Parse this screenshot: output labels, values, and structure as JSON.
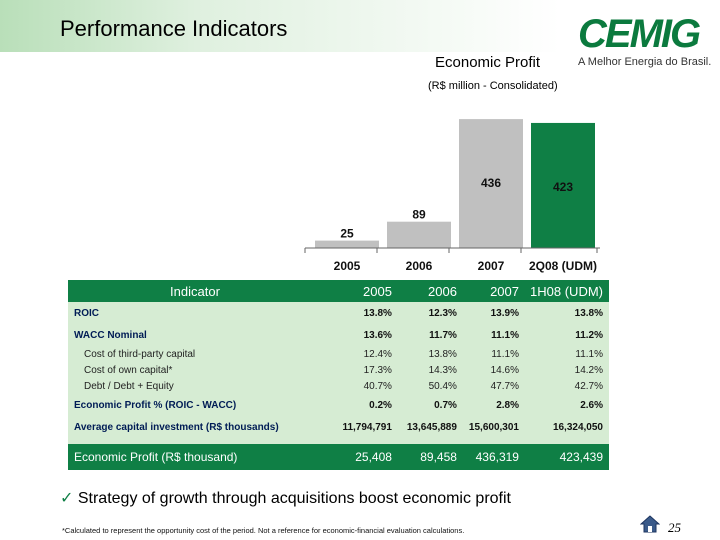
{
  "header": {
    "title": "Performance Indicators",
    "logo_text": "CEMIG",
    "logo_tagline": "A Melhor Energia do Brasil."
  },
  "chart_data": {
    "type": "bar",
    "title": "Economic Profit",
    "subtitle": "(R$ million - Consolidated)",
    "categories": [
      "2005",
      "2006",
      "2007",
      "2Q08 (UDM)"
    ],
    "values": [
      25,
      89,
      436,
      423
    ],
    "value_labels": [
      "25",
      "89",
      "436",
      "423"
    ],
    "colors": [
      "#c0c0c0",
      "#c0c0c0",
      "#c0c0c0",
      "#0f7f45"
    ],
    "ylim": [
      0,
      460
    ],
    "xlabel": "",
    "ylabel": ""
  },
  "table": {
    "header": [
      "Indicator",
      "2005",
      "2006",
      "2007",
      "1H08 (UDM)"
    ],
    "rows": [
      {
        "type": "main",
        "cells": [
          "ROIC",
          "13.8%",
          "12.3%",
          "13.9%",
          "13.8%"
        ]
      },
      {
        "type": "main",
        "cells": [
          "WACC Nominal",
          "13.6%",
          "11.7%",
          "11.1%",
          "11.2%"
        ]
      },
      {
        "type": "sub",
        "cells": [
          "Cost of third-party capital",
          "12.4%",
          "13.8%",
          "11.1%",
          "11.1%"
        ]
      },
      {
        "type": "sub",
        "cells": [
          "Cost of own capital*",
          "17.3%",
          "14.3%",
          "14.6%",
          "14.2%"
        ]
      },
      {
        "type": "sub",
        "cells": [
          "Debt / Debt + Equity",
          "40.7%",
          "50.4%",
          "47.7%",
          "42.7%"
        ]
      },
      {
        "type": "main",
        "cells": [
          "Economic Profit % (ROIC - WACC)",
          "0.2%",
          "0.7%",
          "2.8%",
          "2.6%"
        ]
      },
      {
        "type": "main",
        "cells": [
          "Average capital investment (R$ thousands)",
          "11,794,791",
          "13,645,889",
          "15,600,301",
          "16,324,050"
        ]
      }
    ],
    "footer": [
      "Economic Profit (R$ thousand)",
      "25,408",
      "89,458",
      "436,319",
      "423,439"
    ]
  },
  "bullet": "Strategy of growth through acquisitions boost economic profit",
  "bullet_mark": "ü",
  "footnote": "*Calculated to represent the opportunity cost of the period. Not a reference for economic-financial evaluation calculations.",
  "page_number": "25"
}
